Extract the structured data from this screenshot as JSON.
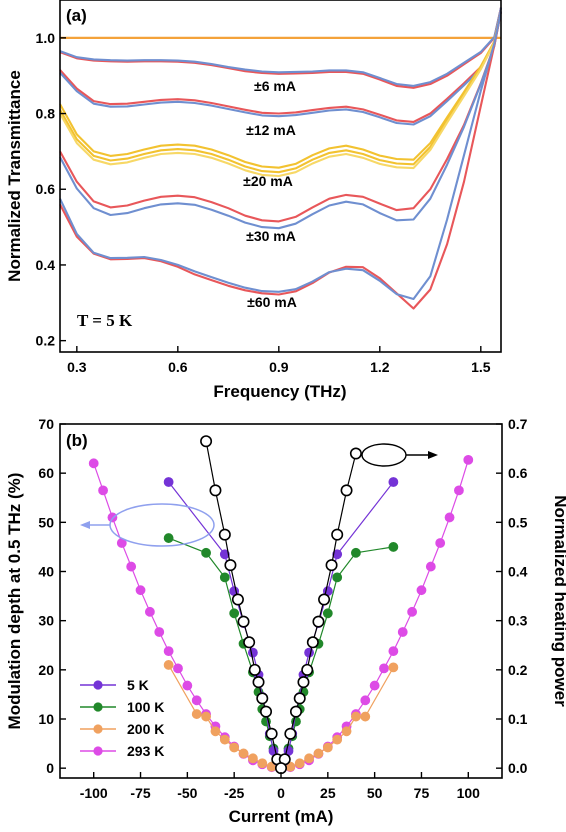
{
  "chart_data": [
    {
      "panel": "(a)",
      "type": "line",
      "xlabel": "Frequency (THz)",
      "ylabel": "Normalized Transmittance",
      "xlim": [
        0.25,
        1.56
      ],
      "ylim": [
        0.17,
        1.1
      ],
      "xticks": [
        "0.3",
        "0.6",
        "0.9",
        "1.2",
        "1.5"
      ],
      "yticks": [
        "0.2",
        "0.4",
        "0.6",
        "0.8",
        "1.0"
      ],
      "annotations": [
        "±6 mA",
        "±12 mA",
        "±20 mA",
        "±30 mA",
        "±60 mA",
        "T = 5 K"
      ],
      "reference": {
        "color": "#f4a23a",
        "x": [
          0.25,
          1.56
        ],
        "y": [
          1.0,
          1.0
        ]
      },
      "x": [
        0.25,
        0.3,
        0.35,
        0.4,
        0.45,
        0.5,
        0.55,
        0.6,
        0.65,
        0.7,
        0.75,
        0.8,
        0.85,
        0.9,
        0.95,
        1.0,
        1.05,
        1.1,
        1.15,
        1.2,
        1.25,
        1.3,
        1.35,
        1.4,
        1.45,
        1.5,
        1.54,
        1.56
      ],
      "series": [
        {
          "label": "±6 mA",
          "curves": [
            {
              "color": "#e8575a",
              "y": [
                0.962,
                0.946,
                0.94,
                0.938,
                0.937,
                0.938,
                0.938,
                0.937,
                0.934,
                0.928,
                0.92,
                0.912,
                0.907,
                0.905,
                0.906,
                0.907,
                0.91,
                0.91,
                0.905,
                0.89,
                0.873,
                0.868,
                0.878,
                0.9,
                0.93,
                0.96,
                1.0,
                1.08
              ]
            },
            {
              "color": "#6f8fd0",
              "y": [
                0.965,
                0.949,
                0.943,
                0.941,
                0.94,
                0.941,
                0.941,
                0.94,
                0.937,
                0.931,
                0.923,
                0.916,
                0.911,
                0.909,
                0.91,
                0.911,
                0.914,
                0.914,
                0.909,
                0.894,
                0.878,
                0.873,
                0.883,
                0.905,
                0.934,
                0.963,
                1.002,
                1.08
              ]
            }
          ]
        },
        {
          "label": "±12 mA",
          "curves": [
            {
              "color": "#e8575a",
              "y": [
                0.915,
                0.866,
                0.833,
                0.825,
                0.826,
                0.831,
                0.836,
                0.838,
                0.835,
                0.828,
                0.819,
                0.81,
                0.802,
                0.8,
                0.803,
                0.809,
                0.815,
                0.818,
                0.811,
                0.797,
                0.782,
                0.778,
                0.8,
                0.839,
                0.88,
                0.923,
                0.99,
                1.08
              ]
            },
            {
              "color": "#6f8fd0",
              "y": [
                0.908,
                0.859,
                0.826,
                0.818,
                0.819,
                0.824,
                0.829,
                0.831,
                0.828,
                0.821,
                0.812,
                0.803,
                0.795,
                0.793,
                0.796,
                0.802,
                0.808,
                0.811,
                0.804,
                0.79,
                0.775,
                0.771,
                0.793,
                0.833,
                0.875,
                0.918,
                0.987,
                1.08
              ]
            }
          ]
        },
        {
          "label": "±20 mA",
          "curves": [
            {
              "color": "#f2c230",
              "y": [
                0.825,
                0.745,
                0.7,
                0.688,
                0.693,
                0.705,
                0.715,
                0.718,
                0.715,
                0.705,
                0.69,
                0.672,
                0.66,
                0.657,
                0.667,
                0.69,
                0.708,
                0.715,
                0.705,
                0.689,
                0.68,
                0.678,
                0.722,
                0.79,
                0.857,
                0.925,
                0.99,
                1.07
              ]
            },
            {
              "color": "#f2c230",
              "y": [
                0.81,
                0.732,
                0.688,
                0.676,
                0.681,
                0.693,
                0.703,
                0.706,
                0.703,
                0.693,
                0.678,
                0.66,
                0.648,
                0.645,
                0.655,
                0.678,
                0.696,
                0.703,
                0.693,
                0.677,
                0.668,
                0.666,
                0.712,
                0.782,
                0.85,
                0.92,
                0.988,
                1.07
              ]
            },
            {
              "color": "#f7d866",
              "y": [
                0.8,
                0.722,
                0.678,
                0.666,
                0.671,
                0.683,
                0.693,
                0.696,
                0.693,
                0.683,
                0.668,
                0.65,
                0.638,
                0.635,
                0.645,
                0.668,
                0.686,
                0.693,
                0.683,
                0.667,
                0.658,
                0.656,
                0.704,
                0.776,
                0.846,
                0.917,
                0.987,
                1.07
              ]
            }
          ]
        },
        {
          "label": "±30 mA",
          "curves": [
            {
              "color": "#e8575a",
              "y": [
                0.7,
                0.62,
                0.568,
                0.552,
                0.557,
                0.57,
                0.58,
                0.583,
                0.579,
                0.566,
                0.55,
                0.53,
                0.518,
                0.515,
                0.527,
                0.552,
                0.575,
                0.585,
                0.58,
                0.562,
                0.545,
                0.55,
                0.6,
                0.68,
                0.77,
                0.88,
                0.98,
                1.07
              ]
            },
            {
              "color": "#6f8fd0",
              "y": [
                0.685,
                0.602,
                0.55,
                0.532,
                0.537,
                0.55,
                0.56,
                0.563,
                0.559,
                0.546,
                0.53,
                0.512,
                0.5,
                0.497,
                0.509,
                0.534,
                0.557,
                0.567,
                0.56,
                0.537,
                0.518,
                0.52,
                0.575,
                0.665,
                0.765,
                0.878,
                0.978,
                1.07
              ]
            }
          ]
        },
        {
          "label": "±60 mA",
          "curves": [
            {
              "color": "#e8575a",
              "y": [
                0.56,
                0.475,
                0.43,
                0.415,
                0.416,
                0.418,
                0.41,
                0.395,
                0.375,
                0.36,
                0.345,
                0.333,
                0.325,
                0.322,
                0.33,
                0.352,
                0.38,
                0.395,
                0.394,
                0.365,
                0.325,
                0.285,
                0.335,
                0.455,
                0.62,
                0.82,
                0.98,
                1.07
              ]
            },
            {
              "color": "#6f8fd0",
              "y": [
                0.575,
                0.482,
                0.432,
                0.418,
                0.419,
                0.421,
                0.413,
                0.4,
                0.383,
                0.368,
                0.353,
                0.34,
                0.331,
                0.329,
                0.336,
                0.356,
                0.381,
                0.39,
                0.386,
                0.358,
                0.323,
                0.31,
                0.37,
                0.52,
                0.69,
                0.86,
                0.985,
                1.07
              ]
            }
          ]
        }
      ]
    },
    {
      "panel": "(b)",
      "type": "scatter",
      "xlabel": "Current (mA)",
      "ylabel": "Modulation depth at 0.5 THz (%)",
      "ylabel_right": "Normalized heating power",
      "xlim": [
        -118,
        118
      ],
      "ylim": [
        -2,
        70
      ],
      "ylim_right": [
        -0.02,
        0.7
      ],
      "xticks": [
        "-100",
        "-75",
        "-50",
        "-25",
        "0",
        "25",
        "50",
        "75",
        "100"
      ],
      "yticks": [
        "0",
        "10",
        "20",
        "30",
        "40",
        "50",
        "60",
        "70"
      ],
      "yticks_right": [
        "0.0",
        "0.1",
        "0.2",
        "0.3",
        "0.4",
        "0.5",
        "0.6",
        "0.7"
      ],
      "legend_position": "lower-left",
      "series": [
        {
          "name": "5 K",
          "color": "#7433d6",
          "marker": "filled-circle",
          "axis": "left",
          "x": [
            -60,
            -30,
            -25,
            -20,
            -15,
            -12,
            -10,
            -8,
            -6,
            -4,
            -2,
            0,
            2,
            4,
            6,
            8,
            10,
            12,
            15,
            20,
            25,
            30,
            60
          ],
          "y": [
            58.2,
            43.5,
            36.0,
            29.5,
            23.5,
            19.0,
            14.5,
            11.5,
            7.0,
            3.5,
            1.5,
            0.5,
            1.5,
            3.5,
            7.0,
            11.5,
            14.5,
            19.0,
            23.5,
            29.5,
            36.0,
            43.5,
            58.2
          ]
        },
        {
          "name": "100 K",
          "color": "#21882a",
          "marker": "filled-circle",
          "axis": "left",
          "x": [
            -60,
            -40,
            -30,
            -25,
            -20,
            -15,
            -12,
            -10,
            -8,
            -6,
            -4,
            -2,
            0,
            2,
            4,
            6,
            8,
            10,
            12,
            15,
            20,
            25,
            30,
            40,
            60
          ],
          "y": [
            46.8,
            43.8,
            38.8,
            31.5,
            25.3,
            19.5,
            15.5,
            12.0,
            9.5,
            6.5,
            4.0,
            2.0,
            0.8,
            2.0,
            4.0,
            6.5,
            9.5,
            12.0,
            15.5,
            19.5,
            25.3,
            31.5,
            38.8,
            43.8,
            45.0
          ]
        },
        {
          "name": "200 K",
          "color": "#f0a15f",
          "marker": "filled-circle",
          "axis": "left",
          "x": [
            -60,
            -45,
            -40,
            -35,
            -30,
            -25,
            -20,
            -15,
            -10,
            -5,
            0,
            5,
            10,
            15,
            20,
            25,
            30,
            35,
            40,
            45,
            60
          ],
          "y": [
            21.0,
            11.0,
            10.5,
            7.5,
            5.8,
            4.2,
            3.0,
            2.0,
            1.0,
            0.3,
            0.0,
            0.3,
            1.0,
            2.0,
            3.0,
            4.2,
            5.8,
            7.5,
            10.5,
            10.5,
            20.5
          ]
        },
        {
          "name": "293 K",
          "color": "#dd4be6",
          "marker": "filled-circle",
          "axis": "left",
          "x": [
            -100,
            -95,
            -90,
            -85,
            -80,
            -75,
            -70,
            -65,
            -60,
            -55,
            -50,
            -45,
            -40,
            -35,
            -30,
            -25,
            -20,
            -15,
            -10,
            -5,
            0,
            5,
            10,
            15,
            20,
            25,
            30,
            35,
            40,
            45,
            50,
            55,
            60,
            65,
            70,
            75,
            80,
            85,
            90,
            95,
            100
          ],
          "y": [
            62.0,
            56.5,
            51.0,
            45.8,
            41.0,
            36.2,
            31.8,
            27.7,
            23.8,
            20.3,
            16.8,
            13.8,
            11.0,
            8.5,
            6.3,
            4.4,
            2.9,
            1.6,
            0.8,
            0.2,
            0.0,
            0.2,
            0.8,
            1.6,
            2.9,
            4.4,
            6.3,
            8.5,
            11.0,
            13.8,
            16.8,
            20.3,
            23.8,
            27.7,
            31.8,
            36.2,
            41.0,
            45.8,
            51.0,
            56.5,
            62.7
          ]
        },
        {
          "name": "",
          "color": "#000000",
          "marker": "open-circle",
          "axis": "right",
          "x": [
            -40,
            -35,
            -30,
            -27,
            -23,
            -20,
            -17,
            -14,
            -12,
            -10,
            -8,
            -5,
            -2,
            2,
            5,
            8,
            10,
            12,
            14,
            17,
            20,
            23,
            27,
            30,
            35,
            40
          ],
          "y": [
            0.665,
            0.565,
            0.475,
            0.413,
            0.343,
            0.298,
            0.256,
            0.2,
            0.175,
            0.142,
            0.115,
            0.07,
            0.018,
            0.018,
            0.07,
            0.115,
            0.142,
            0.175,
            0.2,
            0.256,
            0.298,
            0.343,
            0.413,
            0.475,
            0.565,
            0.64
          ]
        }
      ],
      "center_marker": {
        "x": 0,
        "y_right": 0.0
      }
    }
  ]
}
